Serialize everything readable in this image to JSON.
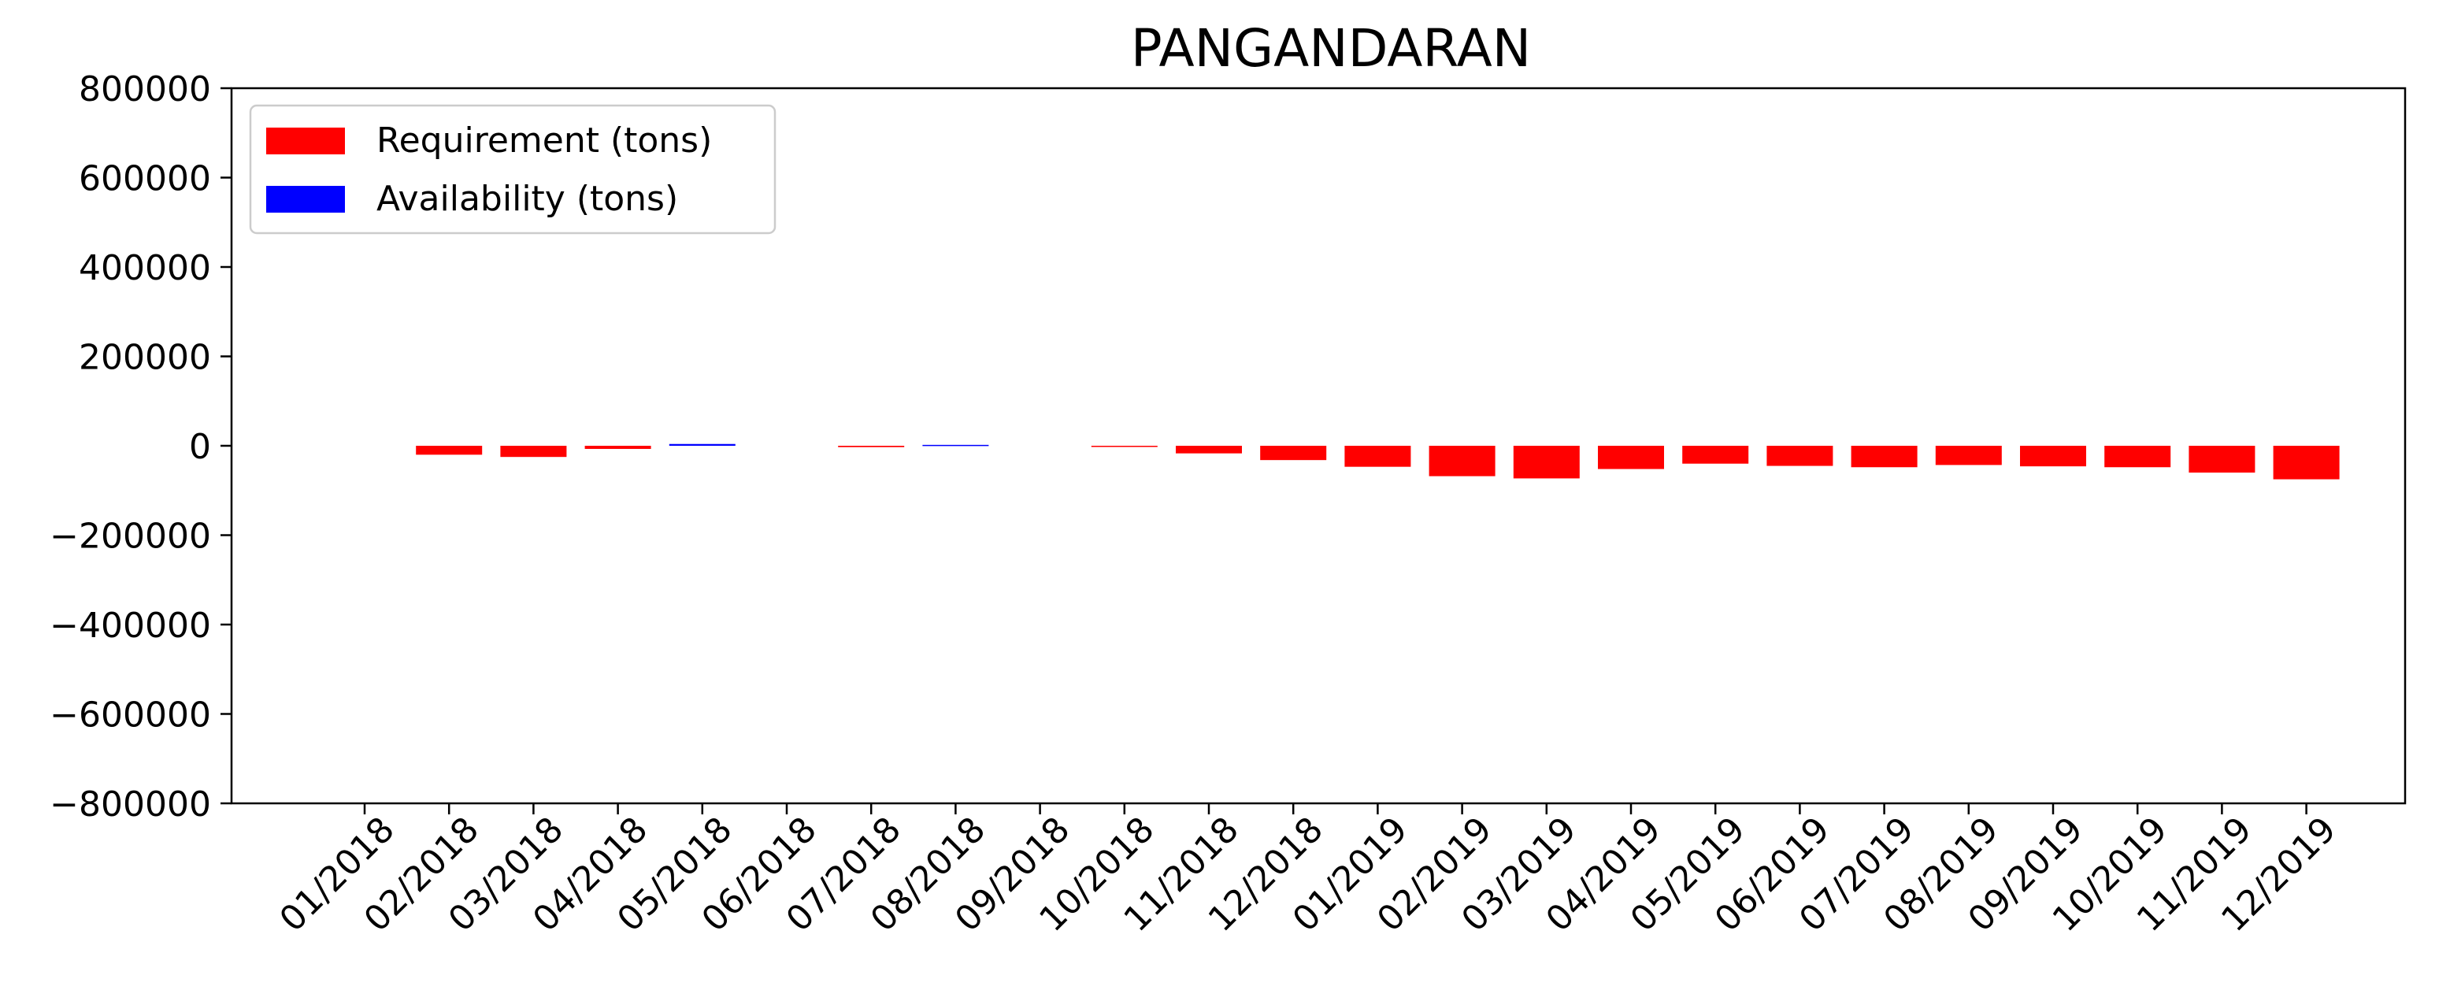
{
  "chart_data": {
    "type": "bar",
    "title": "PANGANDARAN",
    "xlabel": "",
    "ylabel": "",
    "ylim": [
      -800000,
      800000
    ],
    "yticks": [
      800000,
      600000,
      400000,
      200000,
      0,
      -200000,
      -400000,
      -600000,
      -800000
    ],
    "ytick_labels": [
      "800000",
      "600000",
      "400000",
      "200000",
      "0",
      "−200000",
      "−400000",
      "−600000",
      "−800000"
    ],
    "grid": false,
    "legend_position": "top-left",
    "categories": [
      "01/2018",
      "02/2018",
      "03/2018",
      "04/2018",
      "05/2018",
      "06/2018",
      "07/2018",
      "08/2018",
      "09/2018",
      "10/2018",
      "11/2018",
      "12/2018",
      "01/2019",
      "02/2019",
      "03/2019",
      "04/2019",
      "05/2019",
      "06/2019",
      "07/2019",
      "08/2019",
      "09/2019",
      "10/2019",
      "11/2019",
      "12/2019"
    ],
    "series": [
      {
        "name": "Requirement (tons)",
        "color": "#ff0000",
        "values": [
          0,
          -20000,
          -25000,
          -7000,
          0,
          0,
          -3000,
          0,
          0,
          -2000,
          -17000,
          -32000,
          -47000,
          -68000,
          -73000,
          -52000,
          -40000,
          -45000,
          -48000,
          -43000,
          -46000,
          -48000,
          -60000,
          -75000
        ]
      },
      {
        "name": "Availability (tons)",
        "color": "#0000ff",
        "values": [
          0,
          0,
          0,
          0,
          4000,
          0,
          0,
          2000,
          0,
          0,
          0,
          0,
          0,
          0,
          0,
          0,
          0,
          0,
          0,
          0,
          0,
          0,
          0,
          0
        ]
      }
    ]
  }
}
